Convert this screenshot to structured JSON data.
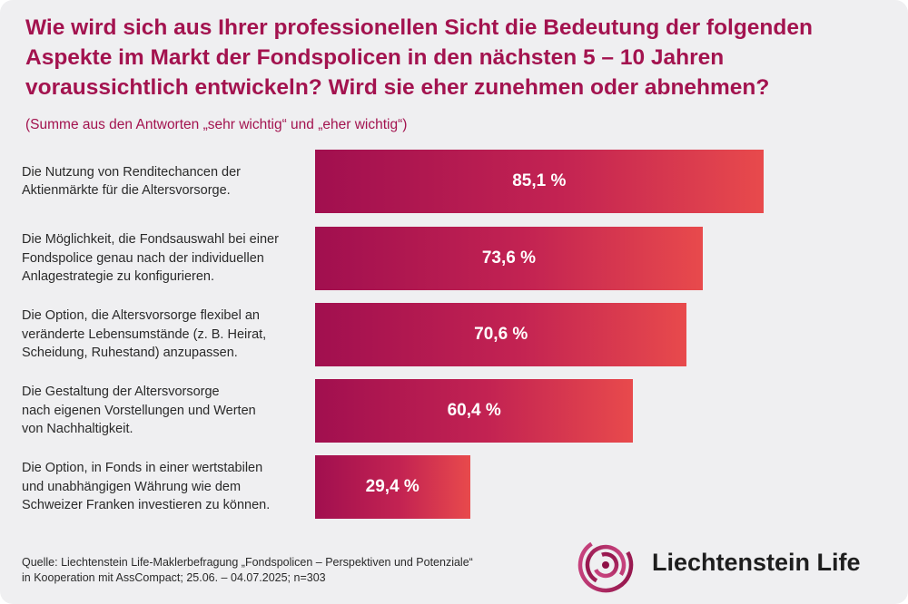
{
  "title": "Wie wird sich aus Ihrer professionellen Sicht die Bedeutung der folgenden Aspekte im Markt der Fondspolicen in den nächsten 5 – 10 Jahren voraussichtlich entwickeln? Wird sie eher zunehmen oder abnehmen?",
  "subtitle": "(Summe aus den Antworten „sehr wichtig“ und „eher wichtig“)",
  "chart_data": {
    "type": "bar",
    "orientation": "horizontal",
    "title": "Wie wird sich aus Ihrer professionellen Sicht die Bedeutung der folgenden Aspekte im Markt der Fondspolicen in den nächsten 5 – 10 Jahren voraussichtlich entwickeln? Wird sie eher zunehmen oder abnehmen?",
    "subtitle": "(Summe aus den Antworten „sehr wichtig“ und „eher wichtig“)",
    "xlim": [
      0,
      100
    ],
    "unit": "%",
    "grid": false,
    "categories": [
      "Die Nutzung von Renditechancen der Aktienmärkte für die Altersvorsorge.",
      "Die Möglichkeit, die Fondsauswahl bei einer Fondspolice genau nach der individuellen Anlagestrategie zu konfigurieren.",
      "Die Option, die Altersvorsorge flexibel an veränderte Lebensumstände (z. B. Heirat, Scheidung, Ruhestand) anzupassen.",
      "Die Gestaltung der Altersvorsorge nach eigenen Vorstellungen und Werten von Nachhaltigkeit.",
      "Die Option, in Fonds in einer wertstabilen und unabhängigen Währung wie dem Schweizer Franken investieren zu können."
    ],
    "label_lines": [
      [
        "Die Nutzung von Renditechancen der",
        "Aktienmärkte für die Altersvorsorge."
      ],
      [
        "Die Möglichkeit, die Fondsauswahl bei einer",
        "Fondspolice genau nach der individuellen",
        "Anlagestrategie zu konfigurieren."
      ],
      [
        "Die Option, die Altersvorsorge flexibel an",
        "veränderte Lebensumstände (z. B. Heirat,",
        "Scheidung, Ruhestand) anzupassen."
      ],
      [
        "Die Gestaltung der Altersvorsorge",
        "nach eigenen Vorstellungen und Werten",
        "von Nachhaltigkeit."
      ],
      [
        "Die Option, in Fonds in einer wertstabilen",
        "und unabhängigen Währung wie dem",
        "Schweizer Franken investieren zu können."
      ]
    ],
    "values": [
      85.1,
      73.6,
      70.6,
      60.4,
      29.4
    ],
    "value_labels": [
      "85,1 %",
      "73,6 %",
      "70,6 %",
      "60,4 %",
      "29,4 %"
    ],
    "colors": {
      "bar_start": "#a10f4f",
      "bar_end": "#e84a4c",
      "title": "#a3134f"
    }
  },
  "source": {
    "line1": "Quelle: Liechtenstein Life-Maklerbefragung „Fondspolicen – Perspektiven und Potenziale“",
    "line2": "in Kooperation mit AssCompact; 25.06. – 04.07.2025; n=303"
  },
  "logo": {
    "text": "Liechtenstein Life",
    "icon": "liechtenstein-life-logo-icon"
  }
}
